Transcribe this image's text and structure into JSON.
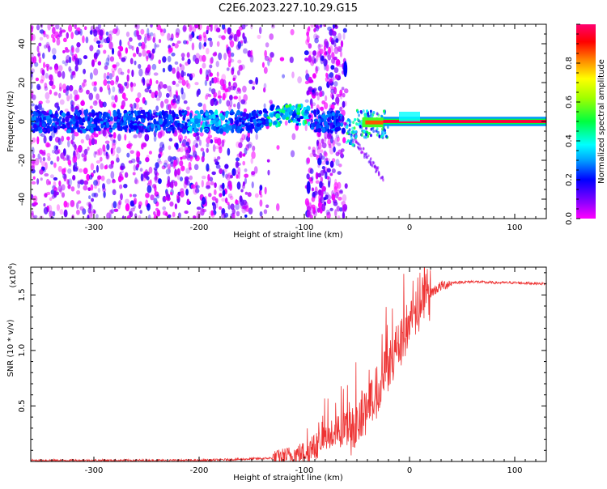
{
  "page_title": "C2E6.2023.227.10.29.G15",
  "chart_data": [
    {
      "type": "heatmap",
      "title": "C2E6.2023.227.10.29.G15",
      "xlabel": "Height of straight line (km)",
      "ylabel": "Frequency (Hz)",
      "xlim": [
        -360,
        130
      ],
      "ylim": [
        -50,
        50
      ],
      "xticks": [
        -300,
        -200,
        -100,
        0,
        100
      ],
      "yticks": [
        -40,
        -20,
        0,
        20,
        40
      ],
      "colorbar": {
        "label": "Normalized spectral amplitude",
        "range": [
          0,
          1
        ],
        "ticks": [
          0.0,
          0.2,
          0.4,
          0.6,
          0.8
        ],
        "colormap": [
          "#ff00ff",
          "#8000ff",
          "#0000ff",
          "#00ffff",
          "#00ff00",
          "#ffff00",
          "#ff8000",
          "#ff0000",
          "#ff0080"
        ]
      },
      "features": [
        {
          "x_range": [
            -360,
            -60
          ],
          "freq_center": 0,
          "amplitude": 0.3
        },
        {
          "x_range": [
            -135,
            -95
          ],
          "freq_center": 3,
          "amplitude": 0.45
        },
        {
          "x_range": [
            -60,
            130
          ],
          "freq_center": 0,
          "amplitude": 0.95
        }
      ]
    },
    {
      "type": "line",
      "xlabel": "Height of straight line (km)",
      "ylabel": "SNR (10 * v/v)",
      "scale_label": "(x10",
      "scale_exp": "4",
      "xlim": [
        -360,
        130
      ],
      "ylim": [
        0,
        1.75
      ],
      "xticks": [
        -300,
        -200,
        -100,
        0,
        100
      ],
      "yticks": [
        0.5,
        1.0,
        1.5
      ],
      "series": [
        {
          "color": "#ee3333",
          "points": [
            [
              -360,
              0.01
            ],
            [
              -300,
              0.01
            ],
            [
              -250,
              0.01
            ],
            [
              -200,
              0.01
            ],
            [
              -160,
              0.02
            ],
            [
              -130,
              0.03
            ],
            [
              -110,
              0.06
            ],
            [
              -100,
              0.08
            ],
            [
              -90,
              0.13
            ],
            [
              -80,
              0.2
            ],
            [
              -70,
              0.26
            ],
            [
              -60,
              0.3
            ],
            [
              -50,
              0.34
            ],
            [
              -40,
              0.48
            ],
            [
              -30,
              0.65
            ],
            [
              -20,
              0.9
            ],
            [
              -10,
              1.05
            ],
            [
              0,
              1.25
            ],
            [
              10,
              1.42
            ],
            [
              20,
              1.52
            ],
            [
              30,
              1.58
            ],
            [
              40,
              1.61
            ],
            [
              60,
              1.62
            ],
            [
              80,
              1.61
            ],
            [
              100,
              1.61
            ],
            [
              130,
              1.6
            ]
          ]
        }
      ]
    }
  ]
}
